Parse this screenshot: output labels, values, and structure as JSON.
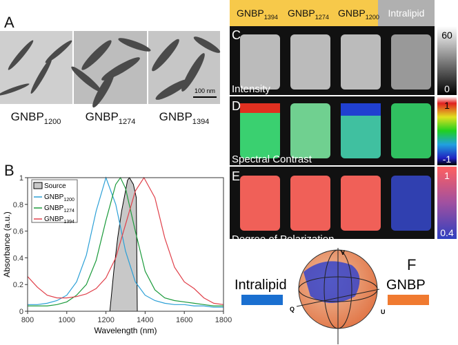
{
  "panel_a": {
    "label": "A",
    "scale_bar": "100 nm",
    "captions": [
      {
        "base": "GNBP",
        "sub": "1200"
      },
      {
        "base": "GNBP",
        "sub": "1274"
      },
      {
        "base": "GNBP",
        "sub": "1394"
      }
    ]
  },
  "panel_b_label": "B",
  "chart_data": {
    "type": "line",
    "xlabel": "Wavelength (nm)",
    "ylabel": "Absorbance (a.u.)",
    "xlim": [
      800,
      1800
    ],
    "xticks": [
      800,
      1000,
      1200,
      1400,
      1600,
      1800
    ],
    "ylim": [
      0,
      1
    ],
    "yticks": [
      0,
      0.2,
      0.4,
      0.6,
      0.8,
      1
    ],
    "series": [
      {
        "name": "Source",
        "color": "#c8c8c8",
        "fill": true,
        "x": [
          1220,
          1240,
          1260,
          1280,
          1300,
          1310,
          1320,
          1340,
          1355,
          1360
        ],
        "values": [
          0,
          0.3,
          0.55,
          0.75,
          0.9,
          0.98,
          1,
          0.95,
          0.85,
          0
        ]
      },
      {
        "name": "GNBP",
        "sub": "1200",
        "color": "#2a9fd6",
        "fill": false,
        "x": [
          800,
          850,
          900,
          950,
          1000,
          1050,
          1100,
          1150,
          1200,
          1250,
          1300,
          1350,
          1400,
          1450,
          1500,
          1550,
          1600,
          1650,
          1700,
          1750,
          1800
        ],
        "values": [
          0.05,
          0.05,
          0.06,
          0.08,
          0.12,
          0.22,
          0.42,
          0.75,
          1,
          0.8,
          0.45,
          0.22,
          0.12,
          0.08,
          0.06,
          0.05,
          0.05,
          0.04,
          0.04,
          0.03,
          0.03
        ]
      },
      {
        "name": "GNBP",
        "sub": "1274",
        "color": "#1a9a3a",
        "fill": false,
        "x": [
          800,
          850,
          900,
          950,
          1000,
          1050,
          1100,
          1150,
          1200,
          1250,
          1274,
          1300,
          1350,
          1400,
          1450,
          1500,
          1550,
          1600,
          1650,
          1700,
          1750,
          1800
        ],
        "values": [
          0.04,
          0.04,
          0.04,
          0.05,
          0.07,
          0.12,
          0.2,
          0.38,
          0.68,
          0.95,
          1,
          0.92,
          0.6,
          0.3,
          0.16,
          0.1,
          0.08,
          0.07,
          0.06,
          0.05,
          0.04,
          0.04
        ]
      },
      {
        "name": "GNBP",
        "sub": "1394",
        "color": "#e0404a",
        "fill": false,
        "x": [
          800,
          850,
          900,
          950,
          1000,
          1050,
          1100,
          1150,
          1200,
          1250,
          1300,
          1350,
          1394,
          1450,
          1500,
          1550,
          1600,
          1650,
          1700,
          1750,
          1800
        ],
        "values": [
          0.26,
          0.18,
          0.12,
          0.1,
          0.1,
          0.11,
          0.13,
          0.17,
          0.25,
          0.4,
          0.65,
          0.9,
          1,
          0.85,
          0.55,
          0.33,
          0.22,
          0.17,
          0.1,
          0.06,
          0.05
        ]
      }
    ]
  },
  "header": [
    {
      "base": "GNBP",
      "sub": "1394"
    },
    {
      "base": "GNBP",
      "sub": "1274"
    },
    {
      "base": "GNBP",
      "sub": "1200"
    },
    {
      "base": "Intralipid"
    }
  ],
  "panel_c": {
    "label": "C",
    "title": "Intensity",
    "colorbar_max": "60",
    "colorbar_min": "0"
  },
  "panel_d": {
    "label": "D",
    "title": "Spectral Contrast",
    "colorbar_max": "1",
    "colorbar_min": "-1"
  },
  "panel_e": {
    "label": "E",
    "title": "Degree of Polarization",
    "colorbar_max": "1",
    "colorbar_min": "0.4"
  },
  "panel_f": {
    "label": "F",
    "left_label": "Intralipid",
    "right_label": "GNBP",
    "axis_v": "V",
    "axis_q": "Q",
    "axis_u": "U"
  }
}
